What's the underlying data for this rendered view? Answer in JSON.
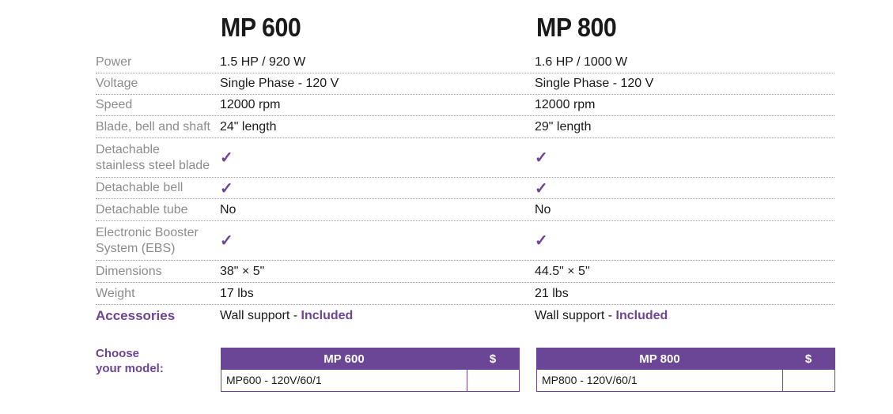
{
  "models": [
    {
      "title": "MP 600",
      "power": "1.5 HP / 920 W",
      "voltage": "Single Phase - 120 V",
      "speed": "12000 rpm",
      "blade": "24\" length",
      "detachable_blade": "✓",
      "detachable_bell": "✓",
      "detachable_tube": "No",
      "ebs": "✓",
      "dimensions": "38\" × 5\"",
      "weight": "17 lbs",
      "accessories_text": "Wall support - ",
      "accessories_included": "Included",
      "order_header_name": "MP 600",
      "order_header_price": "$",
      "order_row_name": "MP600 - 120V/60/1",
      "order_row_price": ""
    },
    {
      "title": "MP 800",
      "power": "1.6 HP / 1000 W",
      "voltage": "Single Phase - 120 V",
      "speed": "12000 rpm",
      "blade": "29\" length",
      "detachable_blade": "✓",
      "detachable_bell": "✓",
      "detachable_tube": "No",
      "ebs": "✓",
      "dimensions": "44.5\" × 5\"",
      "weight": "21 lbs",
      "accessories_text": "Wall support - ",
      "accessories_included": "Included",
      "order_header_name": "MP 800",
      "order_header_price": "$",
      "order_row_name": "MP800 - 120V/60/1",
      "order_row_price": ""
    }
  ],
  "labels": {
    "power": "Power",
    "voltage": "Voltage",
    "speed": "Speed",
    "blade": "Blade, bell and shaft",
    "detachable_blade_1": "Detachable",
    "detachable_blade_2": "stainless steel blade",
    "detachable_bell": "Detachable bell",
    "detachable_tube": "Detachable tube",
    "ebs_1": "Electronic Booster",
    "ebs_2": "System (EBS)",
    "dimensions": "Dimensions",
    "weight": "Weight",
    "accessories": "Accessories"
  },
  "choose": {
    "line1": "Choose",
    "line2": "your model:"
  },
  "colors": {
    "accent": "#6b4596",
    "label": "#8c8c8c",
    "text": "#1a1a1a"
  }
}
